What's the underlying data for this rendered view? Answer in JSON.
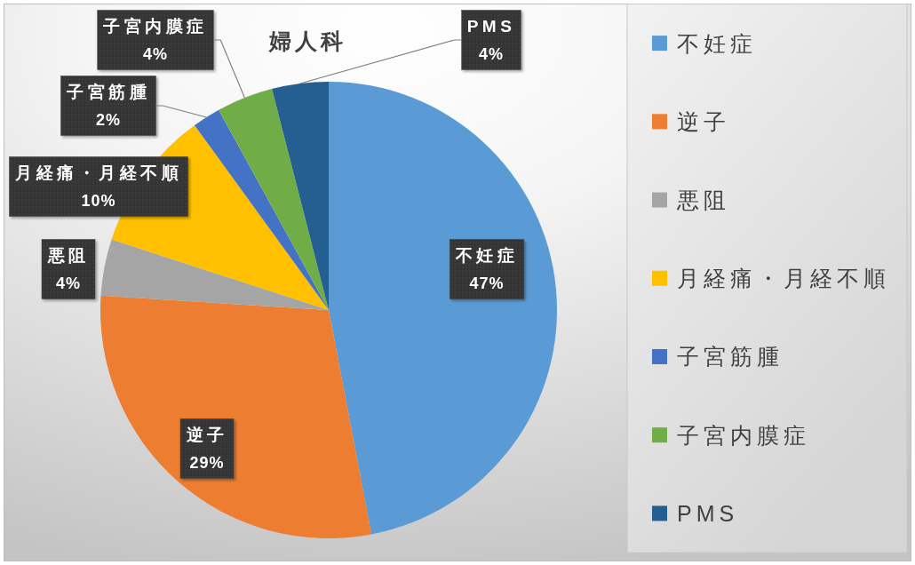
{
  "chart_data": {
    "type": "pie",
    "title": "婦人科",
    "categories": [
      "不妊症",
      "逆子",
      "悪阻",
      "月経痛・月経不順",
      "子宮筋腫",
      "子宮内膜症",
      "PMS"
    ],
    "values": [
      47,
      29,
      4,
      10,
      2,
      4,
      4
    ],
    "colors": [
      "#5b9bd5",
      "#ed7d31",
      "#a5a5a5",
      "#ffc000",
      "#4472c4",
      "#70ad47",
      "#255e91"
    ],
    "value_labels": [
      "47%",
      "29%",
      "4%",
      "10%",
      "2%",
      "4%",
      "4%"
    ],
    "legend": "right"
  }
}
